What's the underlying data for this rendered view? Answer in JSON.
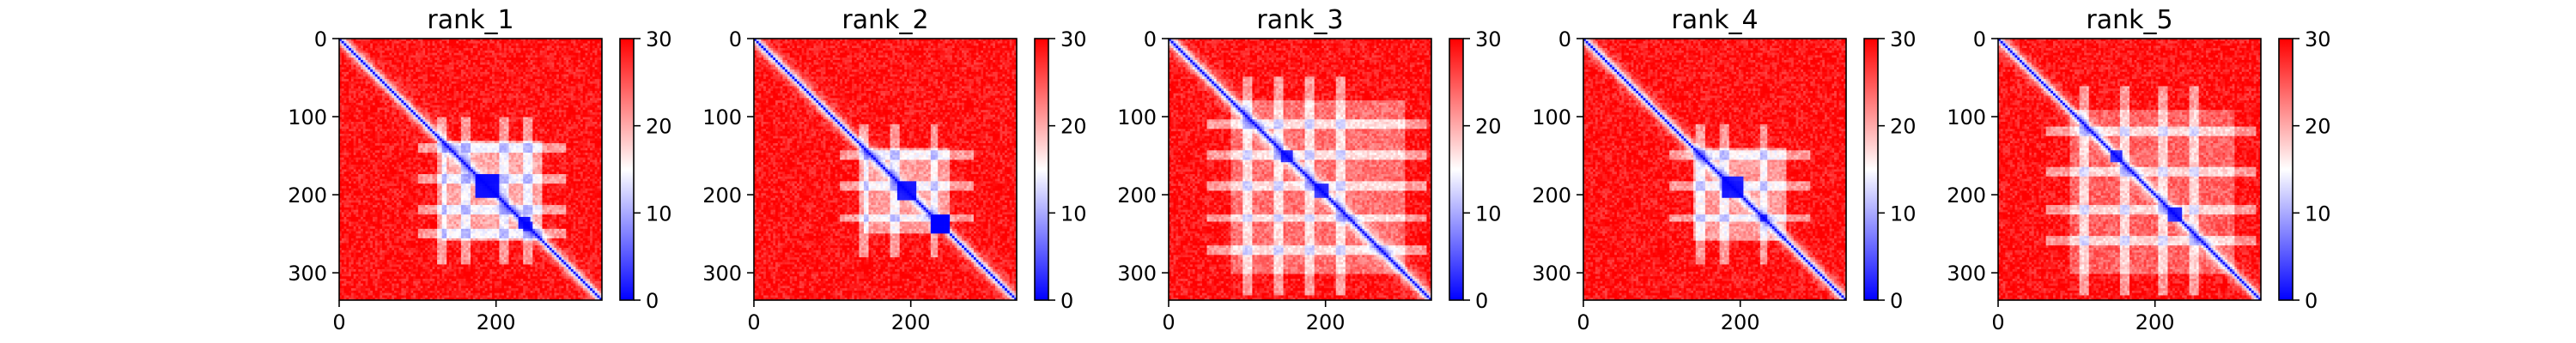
{
  "chart_data": [
    {
      "type": "heatmap",
      "title": "rank_1",
      "x_ticks": [
        0,
        200
      ],
      "y_ticks": [
        0,
        100,
        200,
        300
      ],
      "x_range": [
        0,
        335
      ],
      "y_range": [
        0,
        335
      ],
      "colorbar": {
        "ticks": [
          0,
          10,
          20,
          30
        ],
        "range": [
          0,
          30
        ],
        "colormap": "bwr"
      },
      "features": {
        "diag_width": 6,
        "blocks": [
          [
            190,
            15,
            0.95
          ],
          [
            235,
            8,
            0.9
          ],
          [
            240,
            6,
            0.8
          ]
        ],
        "region": [
          130,
          260,
          0.55
        ],
        "hstripes": [
          140,
          180,
          220,
          250
        ],
        "vstripes": [
          130,
          160,
          210,
          240
        ]
      }
    },
    {
      "type": "heatmap",
      "title": "rank_2",
      "x_ticks": [
        0,
        200
      ],
      "y_ticks": [
        0,
        100,
        200,
        300
      ],
      "x_range": [
        0,
        335
      ],
      "y_range": [
        0,
        335
      ],
      "colorbar": {
        "ticks": [
          0,
          10,
          20,
          30
        ],
        "range": [
          0,
          30
        ],
        "colormap": "bwr"
      },
      "features": {
        "diag_width": 6,
        "blocks": [
          [
            195,
            12,
            0.9
          ],
          [
            238,
            12,
            1.0
          ]
        ],
        "region": [
          140,
          250,
          0.5
        ],
        "hstripes": [
          150,
          190,
          230
        ],
        "vstripes": [
          140,
          180,
          230
        ]
      }
    },
    {
      "type": "heatmap",
      "title": "rank_3",
      "x_ticks": [
        0,
        200
      ],
      "y_ticks": [
        0,
        100,
        200,
        300
      ],
      "x_range": [
        0,
        335
      ],
      "y_range": [
        0,
        335
      ],
      "colorbar": {
        "ticks": [
          0,
          10,
          20,
          30
        ],
        "range": [
          0,
          30
        ],
        "colormap": "bwr"
      },
      "features": {
        "diag_width": 7,
        "blocks": [
          [
            150,
            8,
            0.8
          ],
          [
            195,
            8,
            0.8
          ]
        ],
        "region": [
          80,
          300,
          0.35
        ],
        "hstripes": [
          110,
          150,
          190,
          230,
          270
        ],
        "vstripes": [
          100,
          140,
          180,
          220
        ]
      }
    },
    {
      "type": "heatmap",
      "title": "rank_4",
      "x_ticks": [
        0,
        200
      ],
      "y_ticks": [
        0,
        100,
        200,
        300
      ],
      "x_range": [
        0,
        335
      ],
      "y_range": [
        0,
        335
      ],
      "colorbar": {
        "ticks": [
          0,
          10,
          20,
          30
        ],
        "range": [
          0,
          30
        ],
        "colormap": "bwr"
      },
      "features": {
        "diag_width": 6,
        "blocks": [
          [
            190,
            14,
            0.9
          ],
          [
            230,
            6,
            0.7
          ]
        ],
        "region": [
          140,
          260,
          0.5
        ],
        "hstripes": [
          150,
          190,
          230
        ],
        "vstripes": [
          150,
          180,
          230
        ]
      }
    },
    {
      "type": "heatmap",
      "title": "rank_5",
      "x_ticks": [
        0,
        200
      ],
      "y_ticks": [
        0,
        100,
        200,
        300
      ],
      "x_range": [
        0,
        335
      ],
      "y_range": [
        0,
        335
      ],
      "colorbar": {
        "ticks": [
          0,
          10,
          20,
          30
        ],
        "range": [
          0,
          30
        ],
        "colormap": "bwr"
      },
      "features": {
        "diag_width": 6,
        "blocks": [
          [
            150,
            8,
            0.8
          ],
          [
            225,
            8,
            0.85
          ]
        ],
        "region": [
          90,
          300,
          0.3
        ],
        "hstripes": [
          120,
          170,
          220,
          260
        ],
        "vstripes": [
          110,
          160,
          210,
          250
        ]
      }
    }
  ]
}
